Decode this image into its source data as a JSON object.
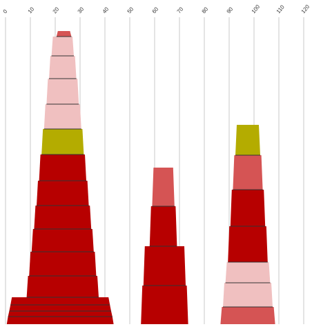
{
  "chart_data": {
    "type": "bar",
    "title": "",
    "xlabel": "",
    "ylabel": "",
    "xlim": [
      0,
      120
    ],
    "x_ticks": [
      0,
      10,
      20,
      30,
      40,
      50,
      60,
      70,
      80,
      90,
      100,
      110,
      120
    ],
    "grid": true,
    "legend": "none",
    "colors": {
      "dark_red": "#b70000",
      "medium_red": "#d55454",
      "light_pink": "#f0c0c0",
      "olive": "#b4ac00",
      "segment_edge": "#333333",
      "gridline": "#c8c8c8"
    },
    "stacks": [
      {
        "segments": [
          {
            "x_start": 0.5,
            "x_end": 43.5,
            "color": "dark_red"
          },
          {
            "x_start": 1.0,
            "x_end": 43.0,
            "color": "dark_red"
          },
          {
            "x_start": 1.5,
            "x_end": 42.5,
            "color": "dark_red"
          },
          {
            "x_start": 2.0,
            "x_end": 42.0,
            "color": "dark_red"
          },
          {
            "x_start": 8.5,
            "x_end": 37.5,
            "color": "dark_red"
          },
          {
            "x_start": 9.5,
            "x_end": 36.5,
            "color": "dark_red"
          },
          {
            "x_start": 10.5,
            "x_end": 35.5,
            "color": "dark_red"
          },
          {
            "x_start": 11.5,
            "x_end": 34.5,
            "color": "dark_red"
          },
          {
            "x_start": 12.5,
            "x_end": 33.5,
            "color": "dark_red"
          },
          {
            "x_start": 13.5,
            "x_end": 32.5,
            "color": "dark_red"
          },
          {
            "x_start": 14.5,
            "x_end": 31.5,
            "color": "olive"
          },
          {
            "x_start": 15.5,
            "x_end": 30.5,
            "color": "light_pink"
          },
          {
            "x_start": 16.5,
            "x_end": 29.5,
            "color": "light_pink"
          },
          {
            "x_start": 17.5,
            "x_end": 28.5,
            "color": "light_pink"
          },
          {
            "x_start": 18.5,
            "x_end": 27.5,
            "color": "light_pink"
          },
          {
            "x_start": 20.5,
            "x_end": 26.5,
            "color": "medium_red"
          }
        ]
      },
      {
        "segments": [
          {
            "x_start": 54.5,
            "x_end": 73.5,
            "color": "dark_red"
          },
          {
            "x_start": 55.5,
            "x_end": 72.5,
            "color": "dark_red"
          },
          {
            "x_start": 58.0,
            "x_end": 69.0,
            "color": "dark_red"
          },
          {
            "x_start": 59.0,
            "x_end": 68.0,
            "color": "medium_red"
          }
        ]
      },
      {
        "segments": [
          {
            "x_start": 86.5,
            "x_end": 108.5,
            "color": "medium_red"
          },
          {
            "x_start": 87.5,
            "x_end": 107.5,
            "color": "light_pink"
          },
          {
            "x_start": 88.5,
            "x_end": 106.5,
            "color": "light_pink"
          },
          {
            "x_start": 89.5,
            "x_end": 105.5,
            "color": "dark_red"
          },
          {
            "x_start": 90.5,
            "x_end": 104.5,
            "color": "dark_red"
          },
          {
            "x_start": 91.5,
            "x_end": 103.5,
            "color": "medium_red"
          },
          {
            "x_start": 92.5,
            "x_end": 102.5,
            "color": "olive"
          }
        ]
      }
    ]
  }
}
